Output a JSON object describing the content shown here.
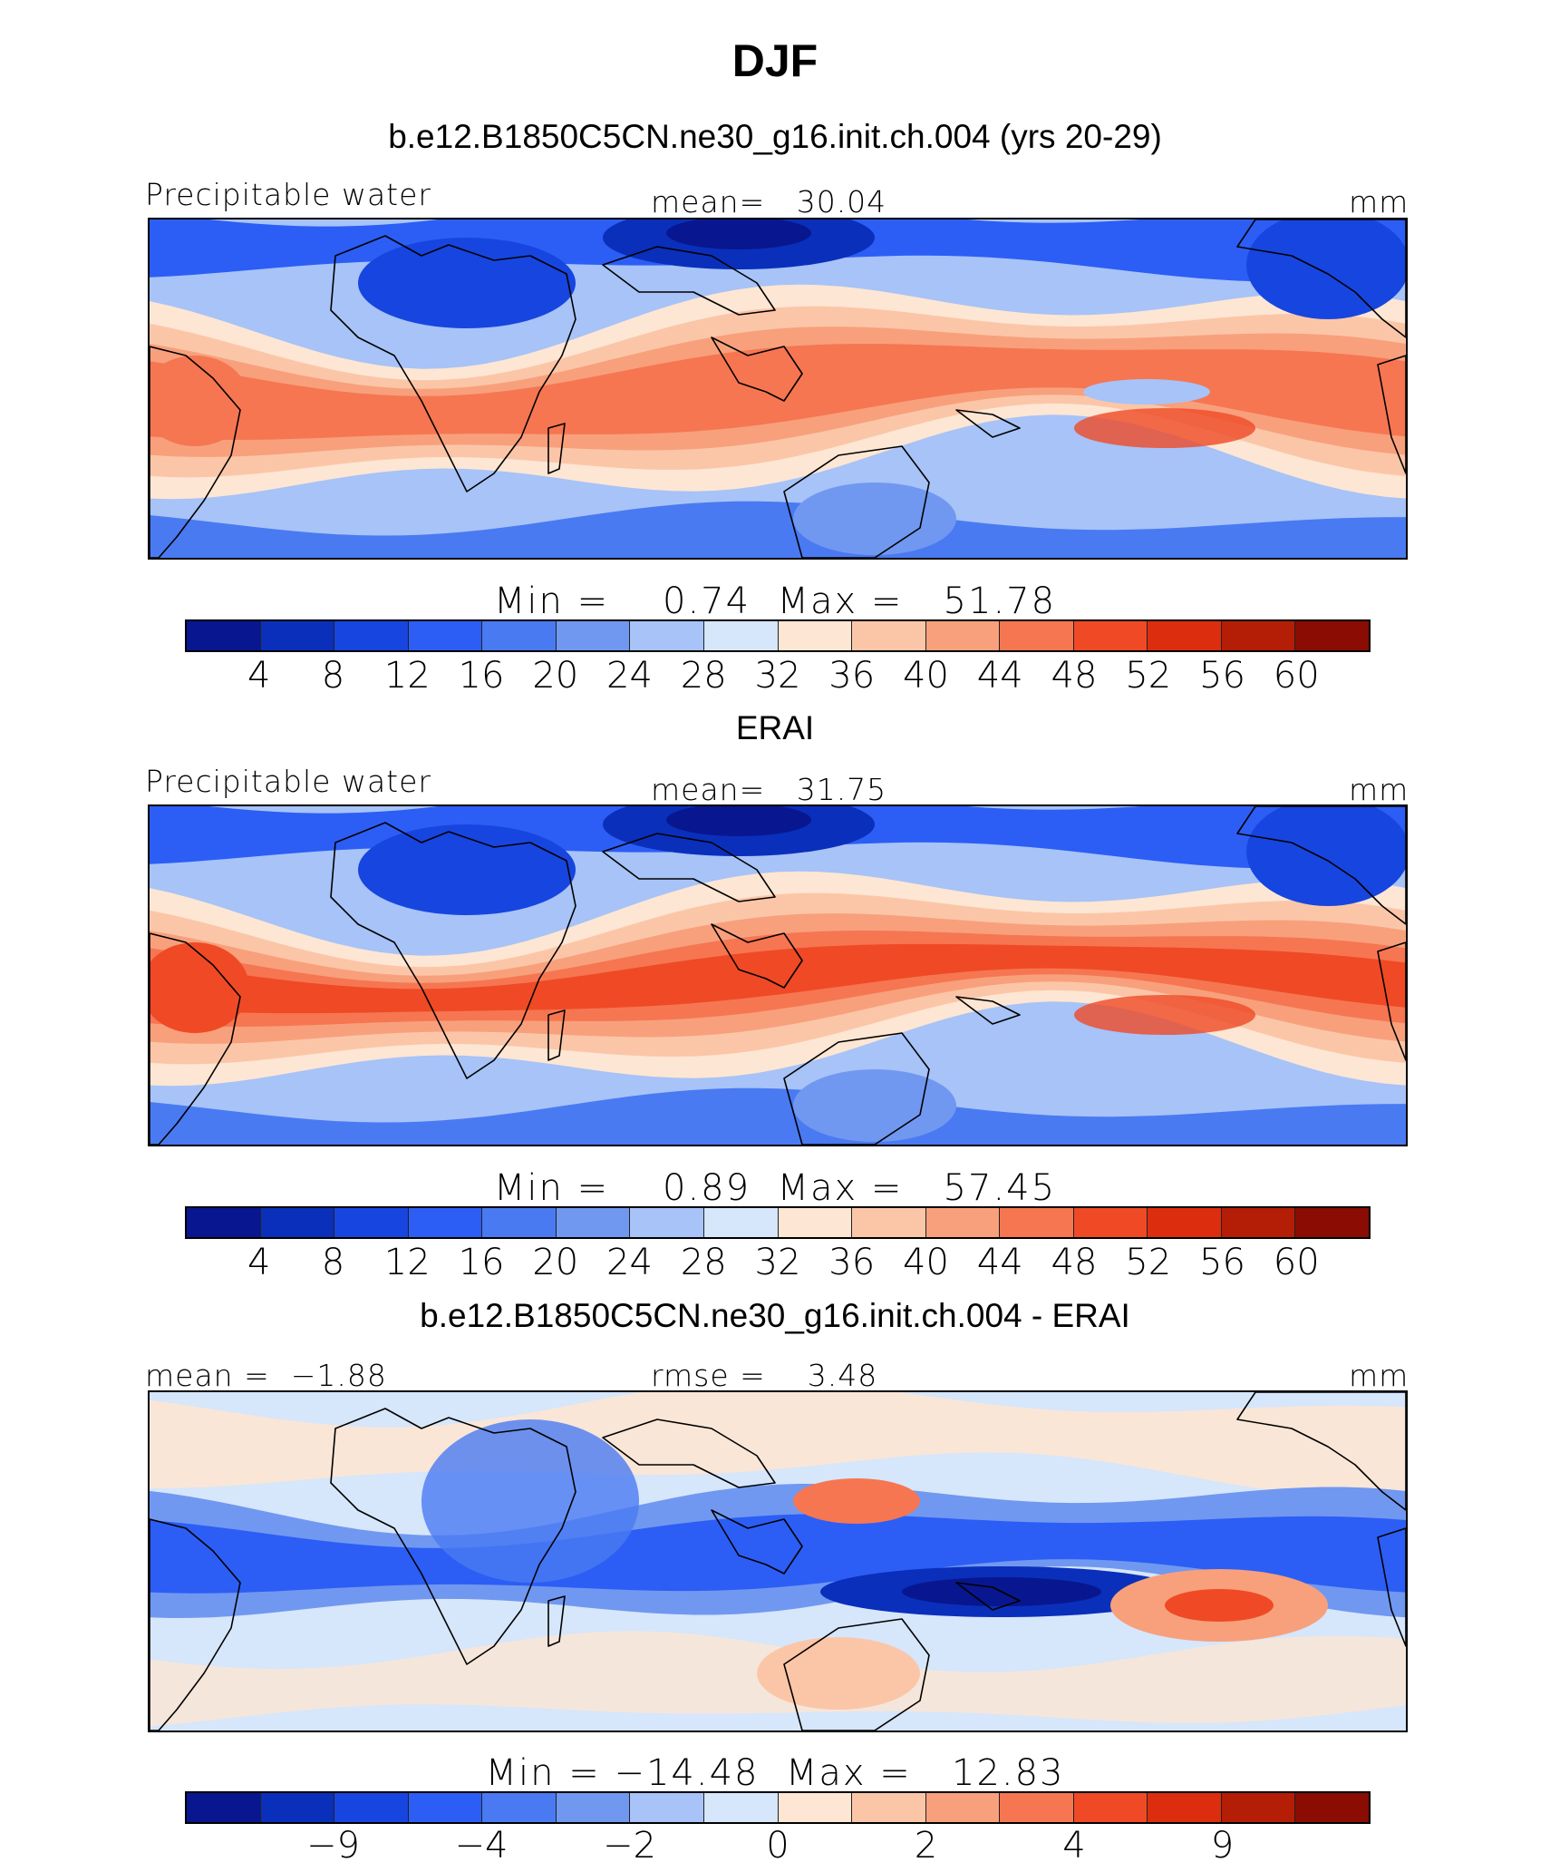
{
  "title": "DJF",
  "colors": {
    "main_palette": [
      "#08178f",
      "#0a2fbb",
      "#1745e0",
      "#2c5ef5",
      "#4a7af2",
      "#7198f0",
      "#a7c3f7",
      "#d6e6fb",
      "#fde6d3",
      "#fbc6a8",
      "#f8a07c",
      "#f67652",
      "#ef4a25",
      "#dc2e0e",
      "#b41d06",
      "#8a0c02"
    ],
    "diff_palette": [
      "#08178f",
      "#0a2fbb",
      "#1745e0",
      "#2c5ef5",
      "#4a7af2",
      "#7198f0",
      "#a7c3f7",
      "#d6e6fb",
      "#fde6d3",
      "#fbc6a8",
      "#f8a07c",
      "#f67652",
      "#ef4a25",
      "#dc2e0e",
      "#b41d06",
      "#8a0c02"
    ]
  },
  "chart_data": [
    {
      "type": "heatmap",
      "title": "b.e12.B1850C5CN.ne30_g16.init.ch.004 (yrs 20-29)",
      "left_label": "Precipitable water",
      "center_label": "mean=   30.04",
      "units": "mm",
      "min_max_label": "Min =    0.74  Max =   51.78",
      "min": 0.74,
      "max": 51.78,
      "mean": 30.04,
      "colorbar_levels": [
        "4",
        "8",
        "12",
        "16",
        "20",
        "24",
        "28",
        "32",
        "36",
        "40",
        "44",
        "48",
        "52",
        "56",
        "60"
      ]
    },
    {
      "type": "heatmap",
      "title": "ERAI",
      "left_label": "Precipitable water",
      "center_label": "mean=   31.75",
      "units": "mm",
      "min_max_label": "Min =    0.89  Max =   57.45",
      "min": 0.89,
      "max": 57.45,
      "mean": 31.75,
      "colorbar_levels": [
        "4",
        "8",
        "12",
        "16",
        "20",
        "24",
        "28",
        "32",
        "36",
        "40",
        "44",
        "48",
        "52",
        "56",
        "60"
      ]
    },
    {
      "type": "heatmap",
      "title": "b.e12.B1850C5CN.ne30_g16.init.ch.004 - ERAI",
      "left_label": "mean =  −1.88",
      "center_label": "rmse =    3.48",
      "units": "mm",
      "min_max_label": "Min = −14.48  Max =   12.83",
      "min": -14.48,
      "max": 12.83,
      "mean": -1.88,
      "rmse": 3.48,
      "colorbar_levels": [
        "−9",
        "−4",
        "−2",
        "0",
        "2",
        "4",
        "9"
      ]
    }
  ]
}
